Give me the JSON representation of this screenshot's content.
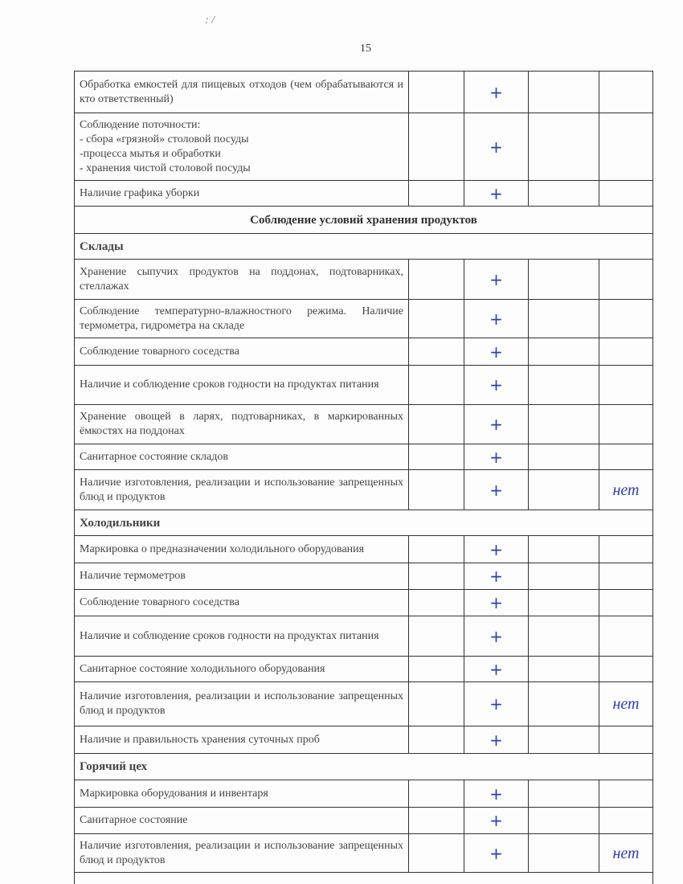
{
  "page_number": "15",
  "corner_mark": ": /",
  "rows": [
    {
      "kind": "row",
      "text": "Обработка емкостей для пищевых отходов (чем обрабатываются и кто ответственный)",
      "h": 52,
      "c2": "+",
      "c4": ""
    },
    {
      "kind": "row",
      "text": "Соблюдение поточности:\n- сбора «грязной» столовой посуды\n-процесса мытья и обработки\n- хранения чистой столовой посуды",
      "h": 84,
      "c2": "+",
      "c4": ""
    },
    {
      "kind": "row",
      "text": "Наличие графика уборки",
      "h": 32,
      "c2": "+",
      "c4": ""
    },
    {
      "kind": "section",
      "text": "Соблюдение условий хранения продуктов",
      "h": 34
    },
    {
      "kind": "sub",
      "text": "Склады",
      "h": 32
    },
    {
      "kind": "row",
      "text": "Хранение сыпучих продуктов на поддонах, подтоварниках, стеллажах",
      "h": 50,
      "c2": "+",
      "c4": ""
    },
    {
      "kind": "row",
      "text": "Соблюдение температурно-влажностного режима. Наличие термометра, гидрометра на складе",
      "h": 48,
      "c2": "+",
      "c4": ""
    },
    {
      "kind": "row",
      "text": "Соблюдение товарного соседства",
      "h": 34,
      "c2": "+",
      "c4": ""
    },
    {
      "kind": "row",
      "text": "Наличие и соблюдение сроков годности на продуктах питания",
      "h": 49,
      "c2": "+",
      "c4": ""
    },
    {
      "kind": "row",
      "text": "Хранение овощей в ларях, подтоварниках, в маркированных ёмкостях на поддонах",
      "h": 49,
      "c2": "+",
      "c4": ""
    },
    {
      "kind": "row",
      "text": "Санитарное состояние складов",
      "h": 32,
      "c2": "+",
      "c4": ""
    },
    {
      "kind": "row",
      "text": "Наличие изготовления, реализации и использование запрещенных блюд и продуктов",
      "h": 50,
      "c2": "+",
      "c4": "нет"
    },
    {
      "kind": "sub",
      "text": "Холодильники",
      "h": 32
    },
    {
      "kind": "row",
      "text": "Маркировка о предназначении холодильного оборудования",
      "h": 34,
      "c2": "+",
      "c4": ""
    },
    {
      "kind": "row",
      "text": "Наличие термометров",
      "h": 33,
      "c2": "+",
      "c4": ""
    },
    {
      "kind": "row",
      "text": "Соблюдение товарного соседства",
      "h": 33,
      "c2": "+",
      "c4": ""
    },
    {
      "kind": "row",
      "text": "Наличие и соблюдение сроков годности на продуктах питания",
      "h": 50,
      "c2": "+",
      "c4": ""
    },
    {
      "kind": "row",
      "text": "Санитарное состояние холодильного оборудования",
      "h": 32,
      "c2": "+",
      "c4": ""
    },
    {
      "kind": "row",
      "text": "Наличие изготовления, реализации и использование запрещенных блюд и продуктов",
      "h": 55,
      "c2": "+",
      "c4": "нет"
    },
    {
      "kind": "row",
      "text": "Наличие и правильность хранения суточных проб",
      "h": 34,
      "c2": "+",
      "c4": ""
    },
    {
      "kind": "sub",
      "text": "Горячий цех",
      "h": 33
    },
    {
      "kind": "row",
      "text": "Маркировка оборудования и инвентаря",
      "h": 34,
      "c2": "+",
      "c4": ""
    },
    {
      "kind": "row",
      "text": "Санитарное состояние",
      "h": 33,
      "c2": "+",
      "c4": ""
    },
    {
      "kind": "row",
      "text": "Наличие изготовления, реализации и использование запрещенных блюд и продуктов",
      "h": 48,
      "c2": "+",
      "c4": "нет"
    },
    {
      "kind": "sub",
      "text": "",
      "h": 30
    }
  ]
}
